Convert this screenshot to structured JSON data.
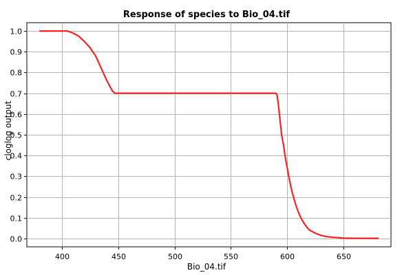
{
  "chart_data": {
    "type": "line",
    "title": "Response of species to Bio_04.tif",
    "xlabel": "Bio_04.tif",
    "ylabel": "cloglog output",
    "xlim": [
      369,
      692
    ],
    "ylim": [
      -0.04,
      1.04
    ],
    "xticks": [
      400,
      450,
      500,
      550,
      600,
      650
    ],
    "yticks": [
      0.0,
      0.1,
      0.2,
      0.3,
      0.4,
      0.5,
      0.6,
      0.7,
      0.8,
      0.9,
      1.0
    ],
    "ytick_labels": [
      "0.0",
      "0.1",
      "0.2",
      "0.3",
      "0.4",
      "0.5",
      "0.6",
      "0.7",
      "0.8",
      "0.9",
      "1.0"
    ],
    "grid": true,
    "series": [
      {
        "color": "#ff2020",
        "x": [
          380,
          400,
          405,
          410,
          415,
          420,
          425,
          430,
          435,
          440,
          445,
          447,
          450,
          500,
          550,
          590,
          591,
          592,
          593,
          594,
          595,
          596,
          597,
          598,
          600,
          602,
          604,
          606,
          608,
          610,
          612,
          615,
          618,
          620,
          625,
          630,
          635,
          640,
          645,
          650,
          660,
          670,
          681
        ],
        "y": [
          1.0,
          1.0,
          1.0,
          0.99,
          0.975,
          0.95,
          0.92,
          0.88,
          0.82,
          0.76,
          0.71,
          0.7,
          0.7,
          0.7,
          0.7,
          0.7,
          0.69,
          0.65,
          0.6,
          0.55,
          0.5,
          0.47,
          0.44,
          0.4,
          0.34,
          0.28,
          0.23,
          0.19,
          0.155,
          0.125,
          0.1,
          0.072,
          0.05,
          0.04,
          0.025,
          0.015,
          0.009,
          0.006,
          0.004,
          0.002,
          0.001,
          0.001,
          0.001
        ]
      }
    ]
  }
}
